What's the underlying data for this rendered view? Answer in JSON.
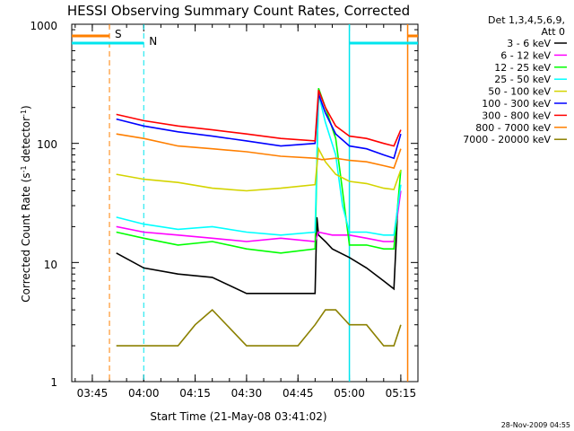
{
  "chart_data": {
    "type": "line",
    "title": "HESSI Observing Summary Count Rates, Corrected",
    "xlabel": "Start Time (21-May-08 03:41:02)",
    "ylabel_main": "Corrected Count Rate (s",
    "ylabel_sup1": "-1",
    "ylabel_mid": " detector",
    "ylabel_sup2": "-1",
    "ylabel_end": ")",
    "yscale": "log",
    "ylim": [
      1,
      1000
    ],
    "xlim": [
      "03:39",
      "05:20"
    ],
    "xticks": [
      "03:45",
      "04:00",
      "04:15",
      "04:30",
      "04:45",
      "05:00",
      "05:15"
    ],
    "yticks": [
      "1",
      "10",
      "100",
      "1000"
    ],
    "legend_title_1": "Det 1,3,4,5,6,9,",
    "legend_title_2": "Att 0",
    "legend_location": "right",
    "timestamp": "28-Nov-2009 04:55",
    "flags": [
      {
        "label": "S",
        "color": "#ff7f00",
        "x_start": "03:39",
        "x_end": "03:50",
        "x_mark": "03:50",
        "x_end_mark": "05:17"
      },
      {
        "label": "N",
        "color": "#00e5ee",
        "x_start": "03:39",
        "x_end": "04:00",
        "x_mark": "04:00",
        "x_end_mark": "05:00"
      }
    ],
    "series": [
      {
        "name": "3 - 6 keV",
        "color": "#000000",
        "x": [
          "03:52",
          "04:00",
          "04:10",
          "04:20",
          "04:30",
          "04:40",
          "04:50",
          "04:50:30",
          "04:51",
          "04:53",
          "04:55",
          "05:00",
          "05:05",
          "05:10",
          "05:13",
          "05:14"
        ],
        "y": [
          12,
          9,
          8,
          7.5,
          5.5,
          5.5,
          5.5,
          24,
          17,
          15,
          13,
          11,
          9,
          7,
          6,
          25
        ]
      },
      {
        "name": "6 - 12 keV",
        "color": "#ff00ff",
        "x": [
          "03:52",
          "04:00",
          "04:10",
          "04:20",
          "04:30",
          "04:40",
          "04:50",
          "04:51",
          "04:55",
          "05:00",
          "05:05",
          "05:10",
          "05:13",
          "05:15"
        ],
        "y": [
          20,
          18,
          17,
          16,
          15,
          16,
          15,
          18,
          17,
          17,
          16,
          15,
          15,
          40
        ]
      },
      {
        "name": "12 - 25 keV",
        "color": "#00ff00",
        "x": [
          "03:52",
          "04:00",
          "04:10",
          "04:20",
          "04:30",
          "04:40",
          "04:50",
          "04:51",
          "04:53",
          "04:56",
          "04:58",
          "05:00",
          "05:05",
          "05:10",
          "05:13",
          "05:15"
        ],
        "y": [
          18,
          16,
          14,
          15,
          13,
          12,
          13,
          290,
          200,
          110,
          40,
          14,
          14,
          13,
          13,
          60
        ]
      },
      {
        "name": "25 - 50 keV",
        "color": "#00ffff",
        "x": [
          "03:52",
          "04:00",
          "04:10",
          "04:20",
          "04:30",
          "04:40",
          "04:50",
          "04:51",
          "04:53",
          "04:56",
          "04:58",
          "05:00",
          "05:05",
          "05:10",
          "05:13",
          "05:15"
        ],
        "y": [
          24,
          21,
          19,
          20,
          18,
          17,
          18,
          260,
          150,
          80,
          30,
          18,
          18,
          17,
          17,
          45
        ]
      },
      {
        "name": "50 - 100 keV",
        "color": "#d4d400",
        "x": [
          "03:52",
          "04:00",
          "04:10",
          "04:20",
          "04:30",
          "04:40",
          "04:50",
          "04:51",
          "04:53",
          "04:56",
          "05:00",
          "05:05",
          "05:10",
          "05:13",
          "05:15"
        ],
        "y": [
          55,
          50,
          47,
          42,
          40,
          42,
          45,
          90,
          70,
          55,
          48,
          46,
          42,
          41,
          60
        ]
      },
      {
        "name": "100 - 300 keV",
        "color": "#0000ff",
        "x": [
          "03:52",
          "04:00",
          "04:10",
          "04:20",
          "04:30",
          "04:40",
          "04:50",
          "04:51",
          "04:53",
          "04:56",
          "05:00",
          "05:05",
          "05:10",
          "05:13",
          "05:15"
        ],
        "y": [
          160,
          140,
          125,
          115,
          105,
          95,
          100,
          260,
          180,
          120,
          95,
          90,
          80,
          75,
          120
        ]
      },
      {
        "name": "300 - 800 keV",
        "color": "#ff0000",
        "x": [
          "03:52",
          "04:00",
          "04:10",
          "04:20",
          "04:30",
          "04:40",
          "04:50",
          "04:51",
          "04:53",
          "04:56",
          "05:00",
          "05:05",
          "05:10",
          "05:13",
          "05:15"
        ],
        "y": [
          175,
          155,
          140,
          130,
          120,
          110,
          105,
          280,
          200,
          140,
          115,
          110,
          100,
          95,
          130
        ]
      },
      {
        "name": "800 - 7000 keV",
        "color": "#ff7f00",
        "x": [
          "03:52",
          "04:00",
          "04:10",
          "04:20",
          "04:30",
          "04:40",
          "04:50",
          "04:52",
          "04:56",
          "05:00",
          "05:05",
          "05:10",
          "05:13",
          "05:15"
        ],
        "y": [
          120,
          110,
          95,
          90,
          85,
          78,
          75,
          73,
          75,
          72,
          70,
          65,
          62,
          90
        ]
      },
      {
        "name": "7000 - 20000 keV",
        "color": "#8b8000",
        "x": [
          "03:52",
          "04:00",
          "04:10",
          "04:15",
          "04:20",
          "04:30",
          "04:40",
          "04:45",
          "04:50",
          "04:53",
          "04:56",
          "05:00",
          "05:05",
          "05:10",
          "05:13",
          "05:15"
        ],
        "y": [
          2,
          2,
          2,
          3,
          4,
          2,
          2,
          2,
          3,
          4,
          4,
          3,
          3,
          2,
          2,
          3
        ]
      }
    ]
  }
}
